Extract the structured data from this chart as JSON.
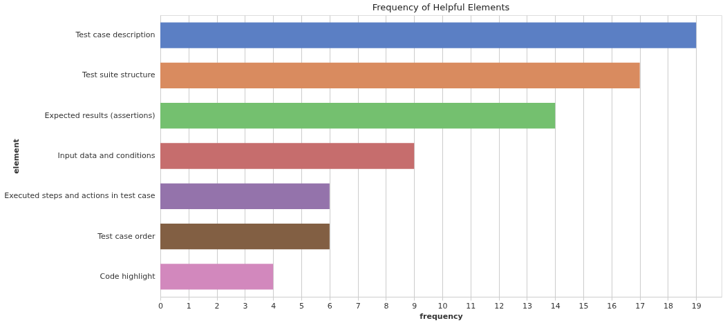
{
  "chart_data": {
    "type": "bar",
    "orientation": "horizontal",
    "title": "Frequency of Helpful Elements",
    "xlabel": "frequency",
    "ylabel": "element",
    "categories": [
      "Test case description",
      "Test suite structure",
      "Expected results (assertions)",
      "Input data and conditions",
      "Executed steps and actions in test case",
      "Test case order",
      "Code highlight"
    ],
    "values": [
      19,
      17,
      14,
      9,
      6,
      6,
      4
    ],
    "colors": [
      "#5b7fc4",
      "#d98b5f",
      "#74c06f",
      "#c66d6d",
      "#9473ab",
      "#825f43",
      "#d288bd"
    ],
    "xlim": [
      0,
      19.9
    ],
    "xticks": [
      0,
      1,
      2,
      3,
      4,
      5,
      6,
      7,
      8,
      9,
      10,
      11,
      12,
      13,
      14,
      15,
      16,
      17,
      18,
      19
    ],
    "grid": "x"
  }
}
